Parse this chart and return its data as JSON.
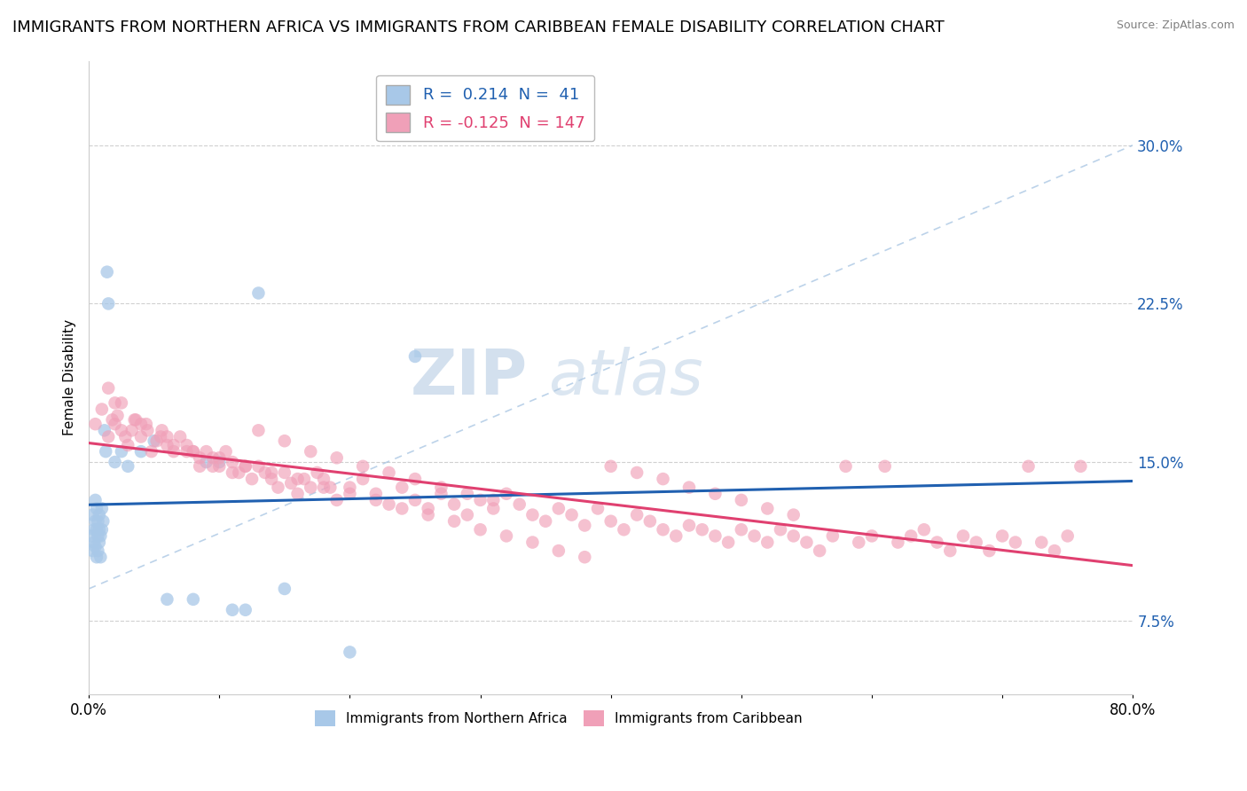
{
  "title": "IMMIGRANTS FROM NORTHERN AFRICA VS IMMIGRANTS FROM CARIBBEAN FEMALE DISABILITY CORRELATION CHART",
  "source": "Source: ZipAtlas.com",
  "xlabel": "",
  "ylabel": "Female Disability",
  "xlim": [
    0.0,
    0.8
  ],
  "ylim": [
    0.04,
    0.34
  ],
  "yticks": [
    0.075,
    0.15,
    0.225,
    0.3
  ],
  "ytick_labels": [
    "7.5%",
    "15.0%",
    "22.5%",
    "30.0%"
  ],
  "xticks": [
    0.0,
    0.1,
    0.2,
    0.3,
    0.4,
    0.5,
    0.6,
    0.7,
    0.8
  ],
  "xtick_labels": [
    "0.0%",
    "",
    "",
    "",
    "",
    "",
    "",
    "",
    "80.0%"
  ],
  "series1_name": "Immigrants from Northern Africa",
  "series1_R": 0.214,
  "series1_N": 41,
  "series1_color": "#a8c8e8",
  "series1_line_color": "#2060b0",
  "series2_name": "Immigrants from Caribbean",
  "series2_R": -0.125,
  "series2_N": 147,
  "series2_color": "#f0a0b8",
  "series2_line_color": "#e04070",
  "background_color": "#ffffff",
  "grid_color": "#cccccc",
  "title_fontsize": 13,
  "axis_label_fontsize": 11,
  "tick_fontsize": 12,
  "legend_fontsize": 13,
  "watermark_left": "ZIP",
  "watermark_right": "atlas",
  "series1_x": [
    0.002,
    0.003,
    0.003,
    0.004,
    0.004,
    0.005,
    0.005,
    0.005,
    0.006,
    0.006,
    0.006,
    0.007,
    0.007,
    0.007,
    0.008,
    0.008,
    0.008,
    0.009,
    0.009,
    0.01,
    0.01,
    0.011,
    0.012,
    0.013,
    0.014,
    0.015,
    0.02,
    0.025,
    0.03,
    0.04,
    0.05,
    0.06,
    0.08,
    0.09,
    0.1,
    0.11,
    0.12,
    0.13,
    0.15,
    0.2,
    0.25
  ],
  "series1_y": [
    0.115,
    0.125,
    0.108,
    0.118,
    0.112,
    0.122,
    0.11,
    0.132,
    0.105,
    0.118,
    0.128,
    0.115,
    0.108,
    0.122,
    0.112,
    0.125,
    0.118,
    0.105,
    0.115,
    0.128,
    0.118,
    0.122,
    0.165,
    0.155,
    0.24,
    0.225,
    0.15,
    0.155,
    0.148,
    0.155,
    0.16,
    0.085,
    0.085,
    0.15,
    0.15,
    0.08,
    0.08,
    0.23,
    0.09,
    0.06,
    0.2
  ],
  "series2_x": [
    0.005,
    0.01,
    0.015,
    0.018,
    0.02,
    0.022,
    0.025,
    0.028,
    0.03,
    0.033,
    0.036,
    0.04,
    0.044,
    0.048,
    0.052,
    0.056,
    0.06,
    0.065,
    0.07,
    0.075,
    0.08,
    0.085,
    0.09,
    0.095,
    0.1,
    0.105,
    0.11,
    0.115,
    0.12,
    0.125,
    0.13,
    0.135,
    0.14,
    0.145,
    0.15,
    0.155,
    0.16,
    0.165,
    0.17,
    0.175,
    0.18,
    0.185,
    0.19,
    0.2,
    0.21,
    0.22,
    0.23,
    0.24,
    0.25,
    0.26,
    0.27,
    0.28,
    0.29,
    0.3,
    0.31,
    0.32,
    0.33,
    0.34,
    0.35,
    0.36,
    0.37,
    0.38,
    0.39,
    0.4,
    0.41,
    0.42,
    0.43,
    0.44,
    0.45,
    0.46,
    0.47,
    0.48,
    0.49,
    0.5,
    0.51,
    0.52,
    0.53,
    0.54,
    0.55,
    0.56,
    0.57,
    0.58,
    0.59,
    0.6,
    0.61,
    0.62,
    0.63,
    0.64,
    0.65,
    0.66,
    0.67,
    0.68,
    0.69,
    0.7,
    0.71,
    0.72,
    0.73,
    0.74,
    0.75,
    0.76,
    0.015,
    0.025,
    0.035,
    0.045,
    0.055,
    0.065,
    0.075,
    0.085,
    0.095,
    0.11,
    0.13,
    0.15,
    0.17,
    0.19,
    0.21,
    0.23,
    0.25,
    0.27,
    0.29,
    0.31,
    0.02,
    0.04,
    0.06,
    0.08,
    0.1,
    0.12,
    0.14,
    0.16,
    0.18,
    0.2,
    0.22,
    0.24,
    0.26,
    0.28,
    0.3,
    0.32,
    0.34,
    0.36,
    0.38,
    0.4,
    0.42,
    0.44,
    0.46,
    0.48,
    0.5,
    0.52,
    0.54
  ],
  "series2_y": [
    0.168,
    0.175,
    0.162,
    0.17,
    0.168,
    0.172,
    0.165,
    0.162,
    0.158,
    0.165,
    0.17,
    0.162,
    0.168,
    0.155,
    0.16,
    0.165,
    0.158,
    0.155,
    0.162,
    0.158,
    0.155,
    0.148,
    0.155,
    0.152,
    0.148,
    0.155,
    0.15,
    0.145,
    0.148,
    0.142,
    0.148,
    0.145,
    0.142,
    0.138,
    0.145,
    0.14,
    0.135,
    0.142,
    0.138,
    0.145,
    0.142,
    0.138,
    0.132,
    0.138,
    0.142,
    0.135,
    0.13,
    0.138,
    0.132,
    0.128,
    0.135,
    0.13,
    0.125,
    0.132,
    0.128,
    0.135,
    0.13,
    0.125,
    0.122,
    0.128,
    0.125,
    0.12,
    0.128,
    0.122,
    0.118,
    0.125,
    0.122,
    0.118,
    0.115,
    0.12,
    0.118,
    0.115,
    0.112,
    0.118,
    0.115,
    0.112,
    0.118,
    0.115,
    0.112,
    0.108,
    0.115,
    0.148,
    0.112,
    0.115,
    0.148,
    0.112,
    0.115,
    0.118,
    0.112,
    0.108,
    0.115,
    0.112,
    0.108,
    0.115,
    0.112,
    0.148,
    0.112,
    0.108,
    0.115,
    0.148,
    0.185,
    0.178,
    0.17,
    0.165,
    0.162,
    0.158,
    0.155,
    0.152,
    0.148,
    0.145,
    0.165,
    0.16,
    0.155,
    0.152,
    0.148,
    0.145,
    0.142,
    0.138,
    0.135,
    0.132,
    0.178,
    0.168,
    0.162,
    0.155,
    0.152,
    0.148,
    0.145,
    0.142,
    0.138,
    0.135,
    0.132,
    0.128,
    0.125,
    0.122,
    0.118,
    0.115,
    0.112,
    0.108,
    0.105,
    0.148,
    0.145,
    0.142,
    0.138,
    0.135,
    0.132,
    0.128,
    0.125
  ]
}
